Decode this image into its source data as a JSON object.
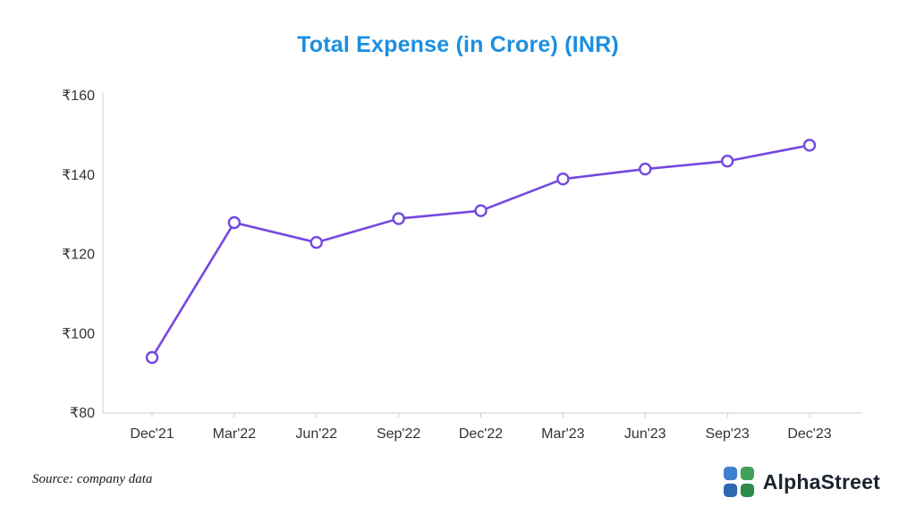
{
  "chart_data": {
    "type": "line",
    "title": "Total Expense (in Crore) (INR)",
    "title_color": "#1b8fe0",
    "categories": [
      "Dec'21",
      "Mar'22",
      "Jun'22",
      "Sep'22",
      "Dec'22",
      "Mar'23",
      "Jun'23",
      "Sep'23",
      "Dec'23"
    ],
    "values": [
      94,
      128,
      123,
      129,
      131,
      139,
      141.5,
      143.5,
      147.5
    ],
    "ylim": [
      80,
      160
    ],
    "yticks": [
      80,
      100,
      120,
      140,
      160
    ],
    "currency_prefix": "₹",
    "xlabel": "",
    "ylabel": "",
    "grid": false,
    "legend": "none",
    "line_color": "#7448e0",
    "marker_fill": "#ffffff",
    "axis_color": "#cccccc",
    "tick_text_color": "#333333"
  },
  "footer": {
    "source_note": "Source: company data",
    "logo_text": "AlphaStreet",
    "logo_colors": [
      "#3f7fd0",
      "#43a05c",
      "#2e68b2",
      "#2f8a4e"
    ]
  }
}
